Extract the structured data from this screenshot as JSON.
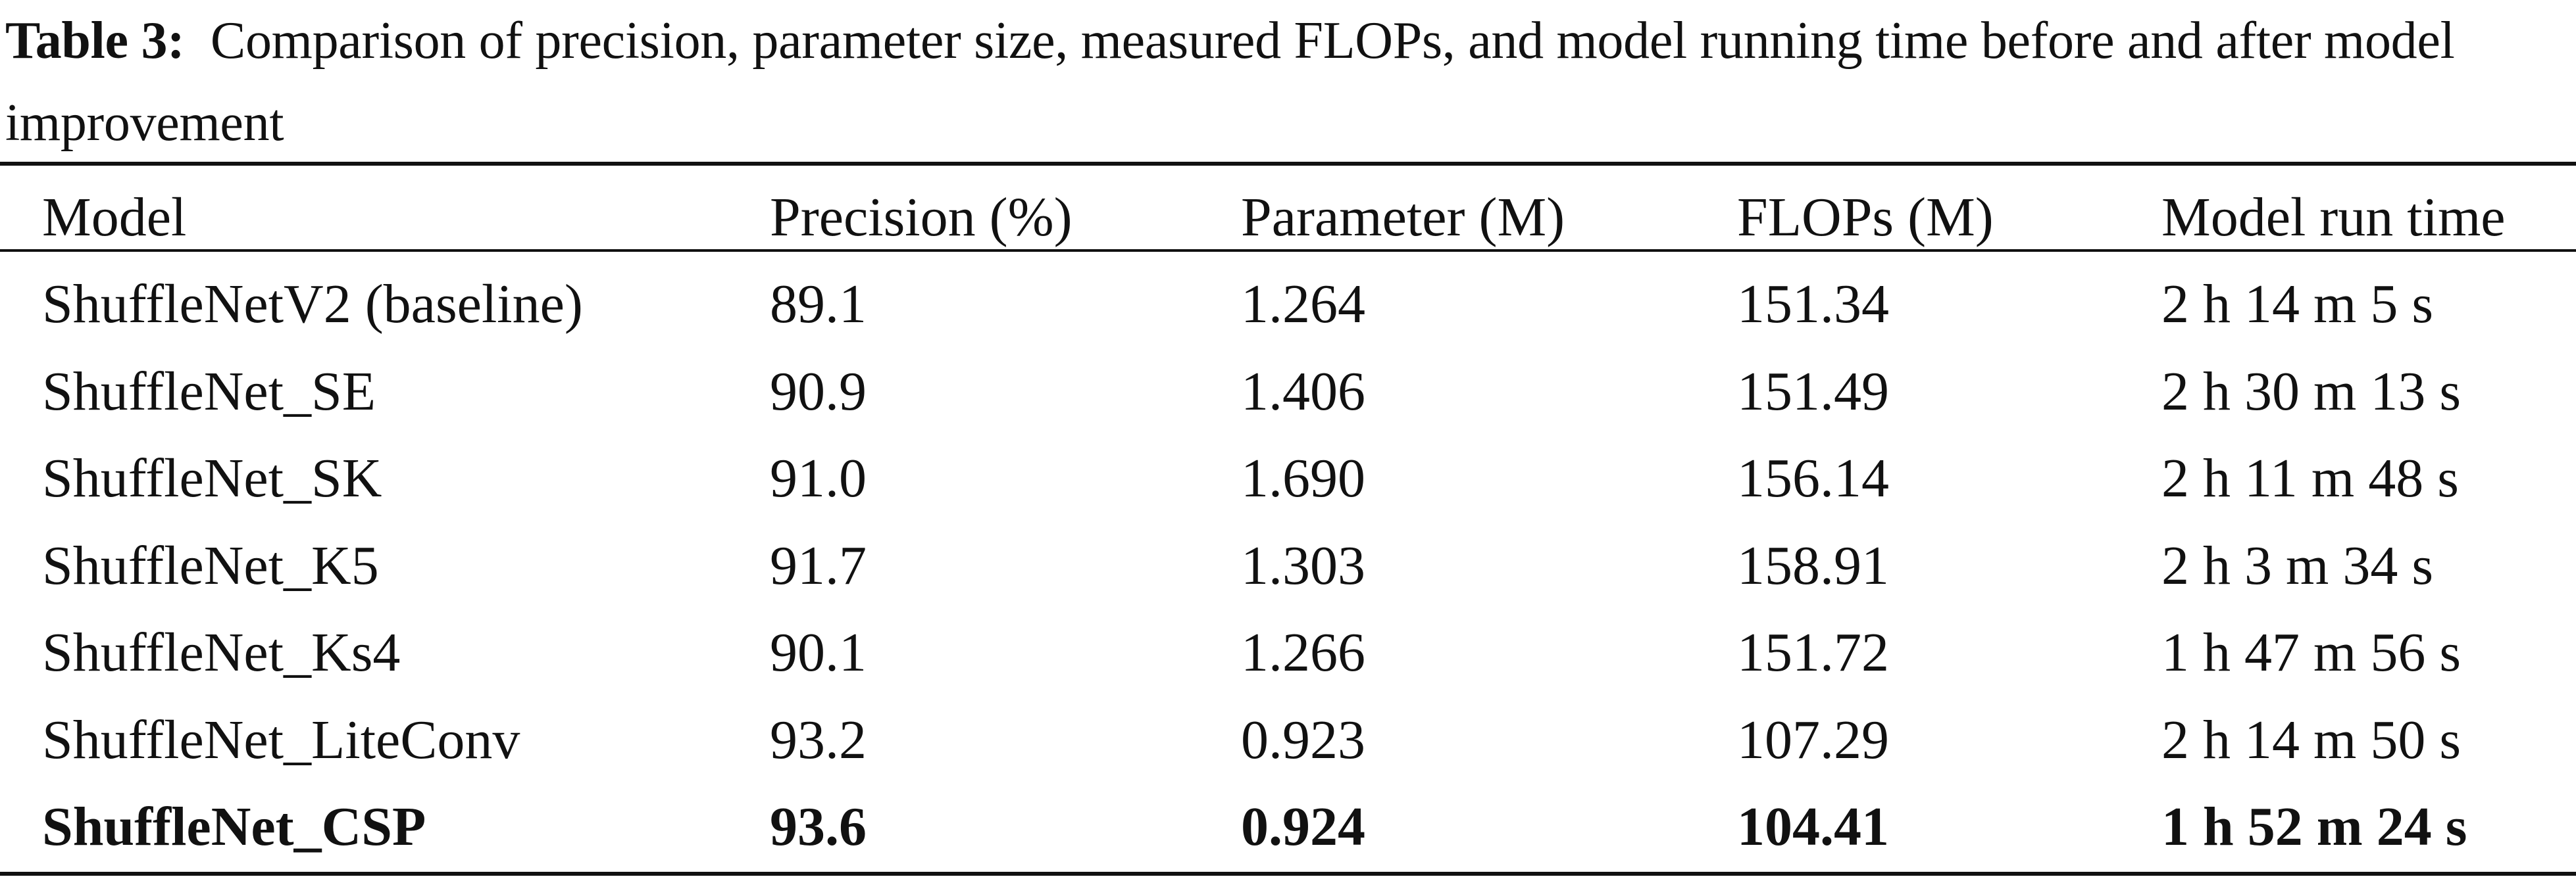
{
  "caption": {
    "label": "Table 3:",
    "text": "Comparison of precision, parameter size, measured FLOPs, and model running time before and after model improvement"
  },
  "columns": [
    "Model",
    "Precision (%)",
    "Parameter (M)",
    "FLOPs (M)",
    "Model run time"
  ],
  "rows": [
    {
      "model": "ShuffleNetV2 (baseline)",
      "precision": "89.1",
      "parameter": "1.264",
      "flops": "151.34",
      "run_time": "2 h 14 m 5 s",
      "bold": false
    },
    {
      "model": "ShuffleNet_SE",
      "precision": "90.9",
      "parameter": "1.406",
      "flops": "151.49",
      "run_time": "2 h 30 m 13 s",
      "bold": false
    },
    {
      "model": "ShuffleNet_SK",
      "precision": "91.0",
      "parameter": "1.690",
      "flops": "156.14",
      "run_time": "2 h 11 m 48 s",
      "bold": false
    },
    {
      "model": "ShuffleNet_K5",
      "precision": "91.7",
      "parameter": "1.303",
      "flops": "158.91",
      "run_time": "2 h 3 m 34 s",
      "bold": false
    },
    {
      "model": "ShuffleNet_Ks4",
      "precision": "90.1",
      "parameter": "1.266",
      "flops": "151.72",
      "run_time": "1 h 47 m 56 s",
      "bold": false
    },
    {
      "model": "ShuffleNet_LiteConv",
      "precision": "93.2",
      "parameter": "0.923",
      "flops": "107.29",
      "run_time": "2 h 14 m 50 s",
      "bold": false
    },
    {
      "model": "ShuffleNet_CSP",
      "precision": "93.6",
      "parameter": "0.924",
      "flops": "104.41",
      "run_time": "1 h 52 m 24 s",
      "bold": true
    }
  ]
}
